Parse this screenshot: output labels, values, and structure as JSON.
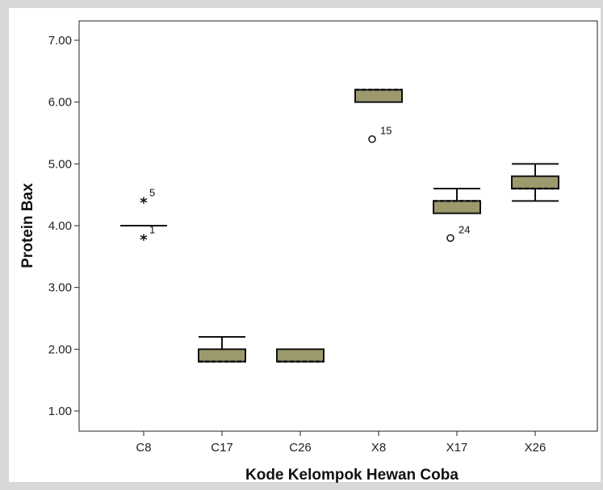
{
  "chart_data": {
    "type": "boxplot",
    "xlabel": "Kode Kelompok Hewan Coba",
    "ylabel": "Protein Bax",
    "ylim": [
      0.7,
      7.3
    ],
    "yticks": [
      1.0,
      2.0,
      3.0,
      4.0,
      5.0,
      6.0,
      7.0
    ],
    "ytick_labels": [
      "1.00",
      "2.00",
      "3.00",
      "4.00",
      "5.00",
      "6.00",
      "7.00"
    ],
    "box_color": "#9c9a6c",
    "categories": [
      "C8",
      "C17",
      "C26",
      "X8",
      "X17",
      "X26"
    ],
    "boxes": [
      {
        "category": "C8",
        "whisker_low": 4.0,
        "q1": 4.0,
        "median": 4.0,
        "q3": 4.0,
        "whisker_high": 4.0,
        "outliers": [
          {
            "value": 4.4,
            "marker": "star",
            "label": "5"
          },
          {
            "value": 3.8,
            "marker": "star",
            "label": "1"
          }
        ]
      },
      {
        "category": "C17",
        "whisker_low": 1.8,
        "q1": 1.8,
        "median": 1.8,
        "q3": 2.0,
        "whisker_high": 2.2,
        "outliers": []
      },
      {
        "category": "C26",
        "whisker_low": 1.8,
        "q1": 1.8,
        "median": 1.8,
        "q3": 2.0,
        "whisker_high": 2.0,
        "outliers": []
      },
      {
        "category": "X8",
        "whisker_low": 6.0,
        "q1": 6.0,
        "median": 6.2,
        "q3": 6.2,
        "whisker_high": 6.2,
        "outliers": [
          {
            "value": 5.4,
            "marker": "circle",
            "label": "15"
          }
        ]
      },
      {
        "category": "X17",
        "whisker_low": 4.2,
        "q1": 4.2,
        "median": 4.4,
        "q3": 4.4,
        "whisker_high": 4.6,
        "outliers": [
          {
            "value": 3.8,
            "marker": "circle",
            "label": "24"
          }
        ]
      },
      {
        "category": "X26",
        "whisker_low": 4.4,
        "q1": 4.6,
        "median": 4.6,
        "q3": 4.8,
        "whisker_high": 5.0,
        "outliers": []
      }
    ]
  }
}
